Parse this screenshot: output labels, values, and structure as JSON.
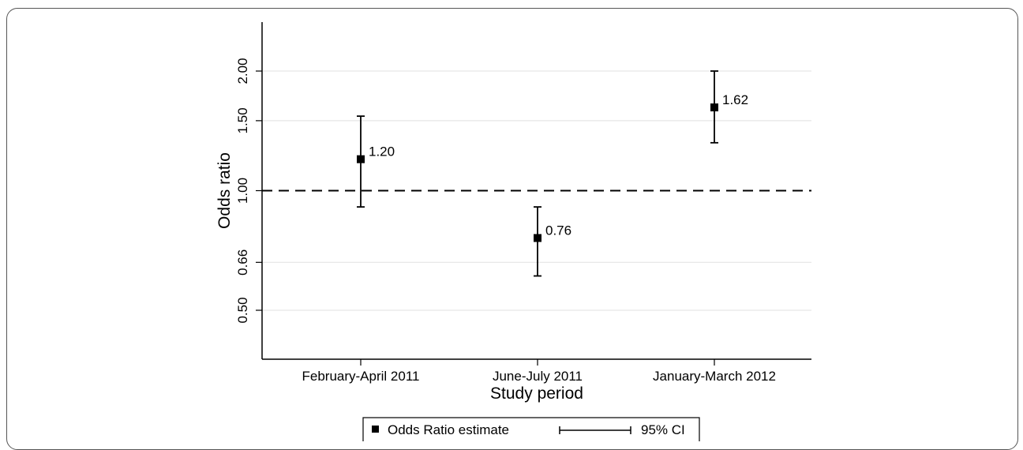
{
  "chart_data": {
    "type": "scatter",
    "title": "",
    "xlabel": "Study period",
    "ylabel": "Odds ratio",
    "categories": [
      "February-April 2011",
      "June-July 2011",
      "January-March 2012"
    ],
    "yscale": "log",
    "ylim": [
      0.42,
      2.6
    ],
    "yticks": [
      {
        "value": 0.5,
        "label": "0.50"
      },
      {
        "value": 0.66,
        "label": "0.66"
      },
      {
        "value": 1.0,
        "label": "1.00"
      },
      {
        "value": 1.5,
        "label": "1.50"
      },
      {
        "value": 2.0,
        "label": "2.00"
      }
    ],
    "grid": true,
    "reference_line": {
      "value": 1.0,
      "style": "dashed"
    },
    "series": [
      {
        "name": "Odds Ratio estimate",
        "points": [
          {
            "category": "February-April 2011",
            "estimate": 1.2,
            "label": "1.20",
            "ci_low": 0.91,
            "ci_high": 1.54
          },
          {
            "category": "June-July 2011",
            "estimate": 0.76,
            "label": "0.76",
            "ci_low": 0.61,
            "ci_high": 0.91
          },
          {
            "category": "January-March 2012",
            "estimate": 1.62,
            "label": "1.62",
            "ci_low": 1.32,
            "ci_high": 2.0
          }
        ]
      }
    ],
    "legend": {
      "placement": "bottom-center",
      "entries": [
        {
          "symbol": "square",
          "label": "Odds Ratio estimate"
        },
        {
          "symbol": "ci-bar",
          "label": "95% CI"
        }
      ]
    },
    "colors": {
      "marker": "#000000",
      "grid": "#e6e6e6",
      "axis": "#000000"
    }
  }
}
